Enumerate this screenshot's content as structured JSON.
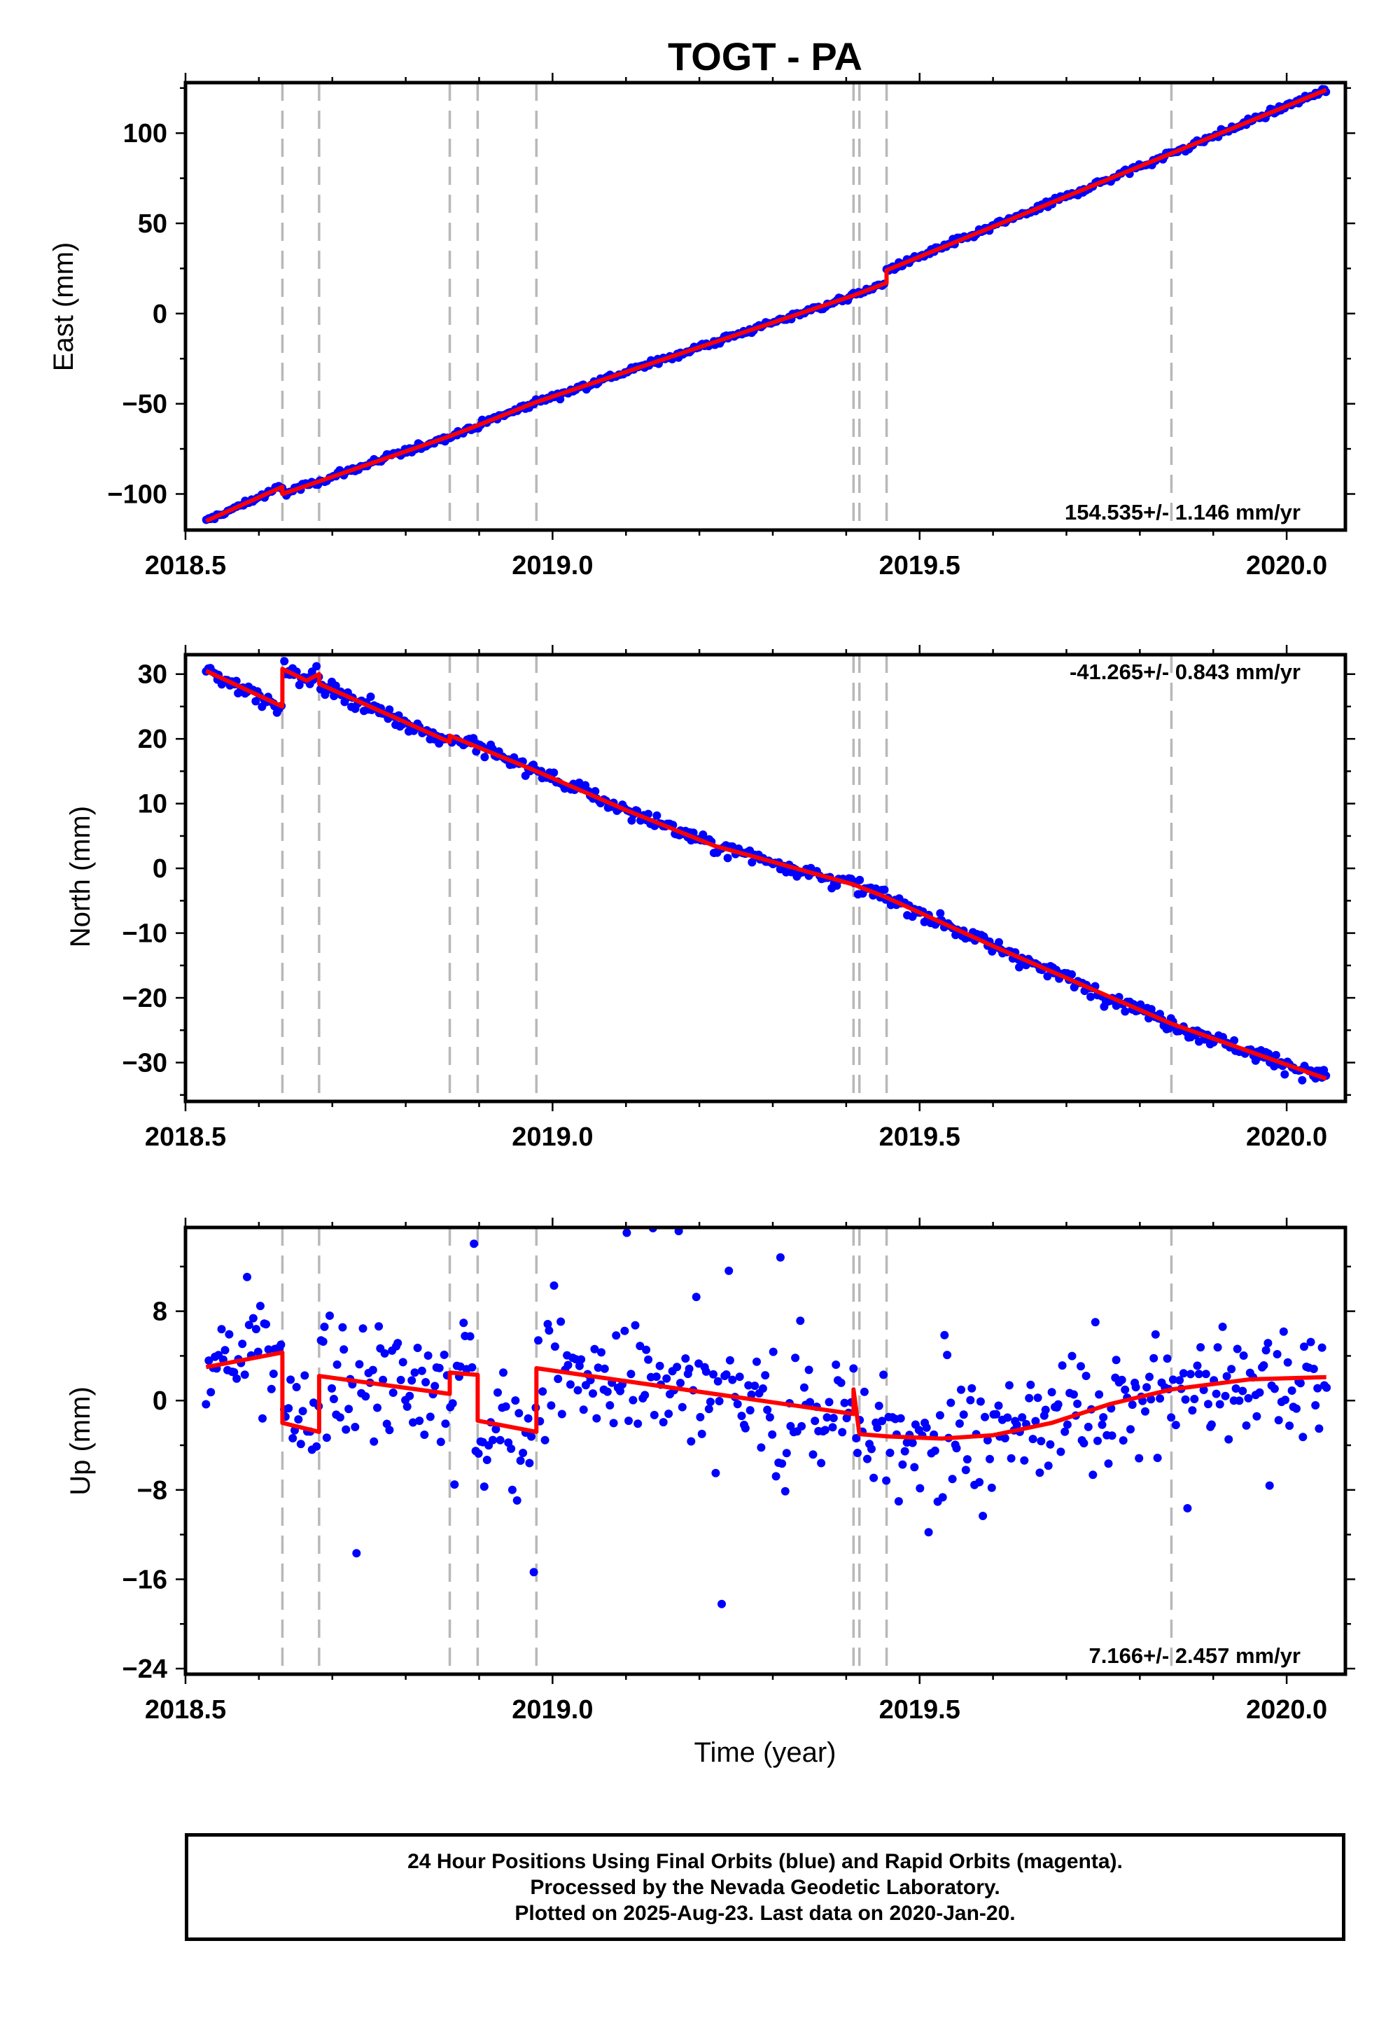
{
  "chart_data": [
    {
      "type": "scatter",
      "panel": "east",
      "title": "TOGT - PA",
      "ylabel": "East (mm)",
      "xlabel": "",
      "xlim": [
        2018.5,
        2020.08
      ],
      "ylim": [
        -120,
        128
      ],
      "xticks": [
        2018.5,
        2019.0,
        2019.5,
        2020.0
      ],
      "xtick_labels": [
        "2018.5",
        "2019.0",
        "2019.5",
        "2020.0"
      ],
      "yticks": [
        -100,
        -50,
        0,
        50,
        100
      ],
      "ytick_labels": [
        "−100",
        "−50",
        "0",
        "50",
        "100"
      ],
      "rate_label": "154.535+/- 1.146 mm/yr",
      "grid": false,
      "event_lines": [
        2018.632,
        2018.682,
        2018.86,
        2018.898,
        2018.978,
        2019.41,
        2019.418,
        2019.455,
        2019.843
      ],
      "series": [
        {
          "name": "24 Hour Positions Using Final Orbits",
          "color": "#0000ff",
          "kind": "points",
          "x_start": 2018.528,
          "x_end": 2020.054,
          "trend_per_year": 154.5,
          "noise_mm": 1.6,
          "offsets": [
            [
              2018.632,
              -4.5
            ],
            [
              2019.455,
              6.0
            ]
          ],
          "y_at_start": -115
        },
        {
          "name": "model fit",
          "color": "#ff0000",
          "kind": "line",
          "x": [
            2018.528,
            2018.632,
            2018.632,
            2018.682,
            2018.86,
            2018.898,
            2018.978,
            2019.41,
            2019.455,
            2019.455,
            2020.054
          ],
          "y": [
            -115,
            -96,
            -100,
            -93,
            -68,
            -62,
            -49,
            10,
            17,
            24,
            124
          ]
        }
      ]
    },
    {
      "type": "scatter",
      "panel": "north",
      "title": "",
      "ylabel": "North (mm)",
      "xlabel": "",
      "xlim": [
        2018.5,
        2020.08
      ],
      "ylim": [
        -36,
        33
      ],
      "xticks": [
        2018.5,
        2019.0,
        2019.5,
        2020.0
      ],
      "xtick_labels": [
        "2018.5",
        "2019.0",
        "2019.5",
        "2020.0"
      ],
      "yticks": [
        -30,
        -20,
        -10,
        0,
        10,
        20,
        30
      ],
      "ytick_labels": [
        "−30",
        "−20",
        "−10",
        "0",
        "10",
        "20",
        "30"
      ],
      "rate_label": "-41.265+/- 0.843 mm/yr",
      "grid": false,
      "event_lines": [
        2018.632,
        2018.682,
        2018.86,
        2018.898,
        2018.978,
        2019.41,
        2019.418,
        2019.455,
        2019.843
      ],
      "series": [
        {
          "name": "24 Hour Positions Using Final Orbits",
          "color": "#0000ff",
          "kind": "points",
          "x_start": 2018.528,
          "x_end": 2020.054,
          "noise_mm": 1.0
        },
        {
          "name": "model fit",
          "color": "#ff0000",
          "kind": "line",
          "x": [
            2018.528,
            2018.632,
            2018.632,
            2018.665,
            2018.682,
            2018.682,
            2018.86,
            2018.86,
            2018.978,
            2019.1,
            2019.22,
            2019.3,
            2019.41,
            2019.455,
            2019.6,
            2019.843,
            2020.054
          ],
          "y": [
            30.5,
            25.0,
            30.8,
            29.0,
            30.0,
            28.5,
            19.5,
            20.5,
            15.0,
            9.0,
            3.5,
            1.0,
            -2.5,
            -4.5,
            -12.0,
            -24.0,
            -32.5
          ]
        }
      ]
    },
    {
      "type": "scatter",
      "panel": "up",
      "title": "",
      "ylabel": "Up (mm)",
      "xlabel": "Time (year)",
      "xlim": [
        2018.5,
        2020.08
      ],
      "ylim": [
        -24.5,
        15.5
      ],
      "xticks": [
        2018.5,
        2019.0,
        2019.5,
        2020.0
      ],
      "xtick_labels": [
        "2018.5",
        "2019.0",
        "2019.5",
        "2020.0"
      ],
      "yticks": [
        -24,
        -16,
        -8,
        0,
        8
      ],
      "ytick_labels": [
        "−24",
        "−16",
        "−8",
        "0",
        "8"
      ],
      "rate_label": "7.166+/- 2.457 mm/yr",
      "grid": false,
      "event_lines": [
        2018.632,
        2018.682,
        2018.86,
        2018.898,
        2018.978,
        2019.41,
        2019.418,
        2019.455,
        2019.843
      ],
      "series": [
        {
          "name": "24 Hour Positions Using Final Orbits",
          "color": "#0000ff",
          "kind": "points",
          "x_start": 2018.528,
          "x_end": 2020.054,
          "noise_mm": 4.5
        },
        {
          "name": "model fit",
          "color": "#ff0000",
          "kind": "line",
          "x": [
            2018.528,
            2018.632,
            2018.632,
            2018.682,
            2018.682,
            2018.86,
            2018.86,
            2018.898,
            2018.898,
            2018.978,
            2018.978,
            2019.41,
            2019.41,
            2019.418,
            2019.455,
            2019.53,
            2019.6,
            2019.68,
            2019.76,
            2019.843,
            2019.95,
            2020.054
          ],
          "y": [
            3.0,
            4.3,
            -2.0,
            -2.8,
            2.2,
            0.6,
            2.5,
            2.3,
            -1.8,
            -2.8,
            2.9,
            -1.2,
            1.0,
            -3.0,
            -3.2,
            -3.4,
            -3.1,
            -2.0,
            -0.3,
            1.0,
            1.9,
            2.1
          ]
        }
      ]
    }
  ],
  "footer": {
    "line1": "24 Hour Positions Using Final Orbits (blue) and Rapid Orbits (magenta).",
    "line2": "Processed by the Nevada Geodetic Laboratory.",
    "line3": "Plotted on 2025-Aug-23. Last data on 2020-Jan-20."
  },
  "colors": {
    "points": "#0000ff",
    "fit": "#ff0000",
    "events": "#b8b8b8"
  }
}
